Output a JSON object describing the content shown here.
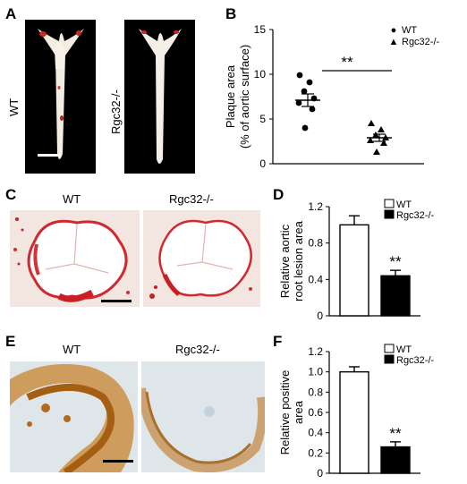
{
  "panels": {
    "A": {
      "letter": "A",
      "row_labels": [
        "WT",
        "Rgc32-/-"
      ]
    },
    "B": {
      "letter": "B"
    },
    "C": {
      "letter": "C",
      "col_labels": [
        "WT",
        "Rgc32-/-"
      ]
    },
    "D": {
      "letter": "D"
    },
    "E": {
      "letter": "E",
      "col_labels": [
        "WT",
        "Rgc32-/-"
      ]
    },
    "F": {
      "letter": "F"
    }
  },
  "chart_data": [
    {
      "id": "B",
      "type": "scatter",
      "ylabel": "Plaque area",
      "ylabel2": "(% of aortic surface)",
      "ylim": [
        0,
        15
      ],
      "yticks": [
        "0",
        "5",
        "10",
        "15"
      ],
      "legend": [
        {
          "name": "WT",
          "marker": "●"
        },
        {
          "name": "Rgc32-/-",
          "marker": "▲"
        }
      ],
      "legend_position": "top-right",
      "significance": "**",
      "groups": [
        {
          "name": "WT",
          "values": [
            9.9,
            9.1,
            8.1,
            7.3,
            6.8,
            6.1,
            4.0
          ],
          "mean": 7.1,
          "sem": 0.7,
          "marker": "circle"
        },
        {
          "name": "Rgc32-/-",
          "values": [
            4.5,
            3.8,
            3.2,
            2.9,
            2.6,
            2.3,
            1.3
          ],
          "mean": 2.9,
          "sem": 0.4,
          "marker": "triangle"
        }
      ]
    },
    {
      "id": "D",
      "type": "bar",
      "ylabel": "Relative aortic",
      "ylabel2": "root lesion area",
      "ylim": [
        0,
        1.2
      ],
      "yticks": [
        "0",
        "0.4",
        "0.8",
        "1.2"
      ],
      "categories": [
        "WT",
        "Rgc32-/-"
      ],
      "values": [
        1.0,
        0.44
      ],
      "errors": [
        0.1,
        0.06
      ],
      "colors": [
        "#ffffff",
        "#000000"
      ],
      "legend": [
        "WT",
        "Rgc32-/-"
      ],
      "legend_position": "top-right",
      "significance": "**"
    },
    {
      "id": "F",
      "type": "bar",
      "ylabel": "Relative positive",
      "ylabel2": "area",
      "ylim": [
        0,
        1.2
      ],
      "yticks": [
        "0",
        "0.2",
        "0.4",
        "0.6",
        "0.8",
        "1.0",
        "1.2"
      ],
      "categories": [
        "WT",
        "Rgc32-/-"
      ],
      "values": [
        1.0,
        0.26
      ],
      "errors": [
        0.05,
        0.05
      ],
      "colors": [
        "#ffffff",
        "#000000"
      ],
      "legend": [
        "WT",
        "Rgc32-/-"
      ],
      "legend_position": "top-right",
      "significance": "**"
    }
  ]
}
